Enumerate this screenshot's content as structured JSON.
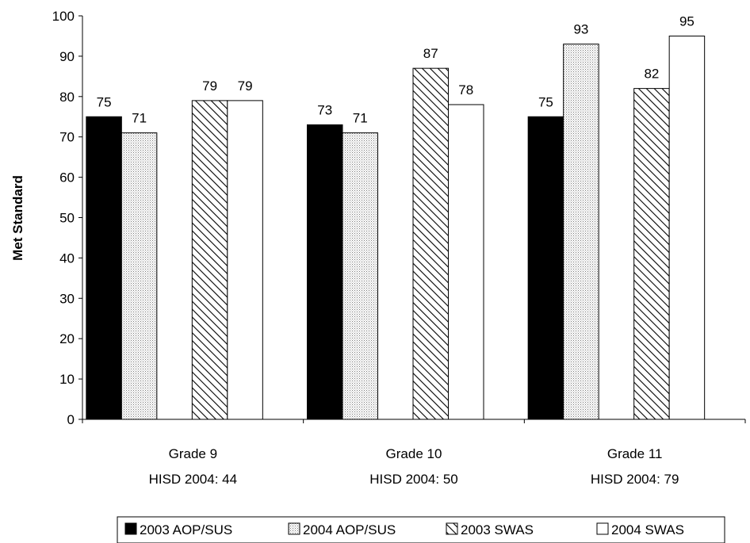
{
  "chart_data": {
    "type": "bar",
    "ylabel": "Met Standard",
    "xlabel": "",
    "ylim": [
      0,
      100
    ],
    "yticks": [
      0,
      10,
      20,
      30,
      40,
      50,
      60,
      70,
      80,
      90,
      100
    ],
    "categories": [
      {
        "line1": "Grade 9",
        "line2": "HISD 2004: 44"
      },
      {
        "line1": "Grade 10",
        "line2": "HISD 2004: 50"
      },
      {
        "line1": "Grade 11",
        "line2": "HISD 2004: 79"
      }
    ],
    "series": [
      {
        "name": "2003 AOP/SUS",
        "fill": "solid-black",
        "values": [
          75,
          73,
          75
        ]
      },
      {
        "name": "2004 AOP/SUS",
        "fill": "dotted",
        "values": [
          71,
          71,
          93
        ]
      },
      {
        "name": "2003 SWAS",
        "fill": "diagonal-hatch",
        "values": [
          79,
          87,
          82
        ]
      },
      {
        "name": "2004 SWAS",
        "fill": "white",
        "values": [
          79,
          78,
          95
        ]
      }
    ],
    "legend_position": "bottom",
    "grid": false
  }
}
